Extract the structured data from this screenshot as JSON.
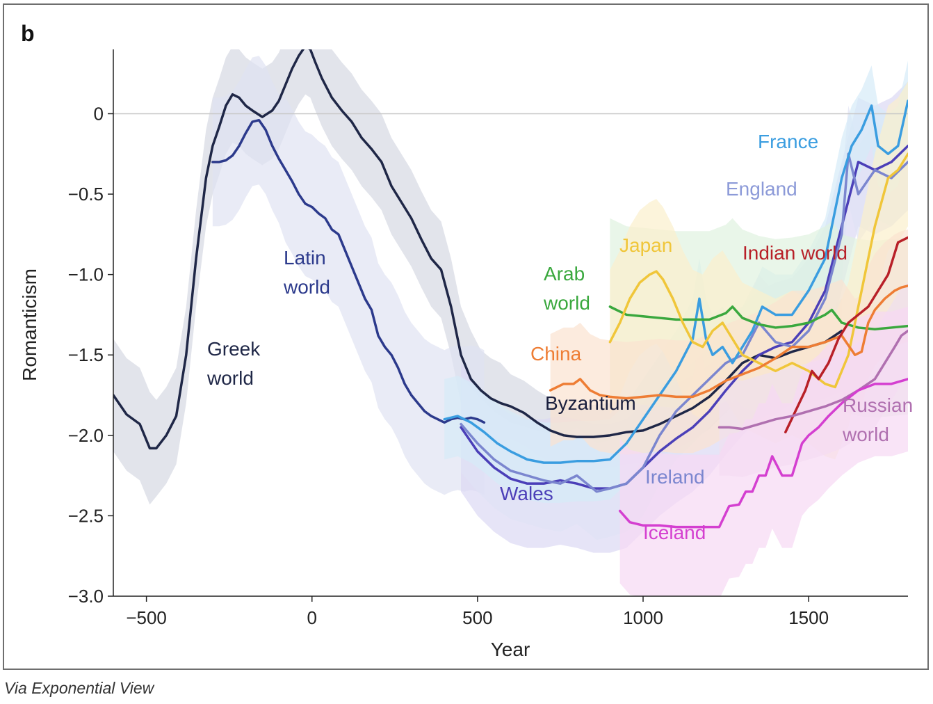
{
  "caption": "Via Exponential View",
  "chart_data": {
    "type": "line",
    "panel_label": "b",
    "title": "",
    "xlabel": "Year",
    "ylabel": "Romanticism",
    "xlim": [
      -600,
      1800
    ],
    "ylim": [
      -3.0,
      0.4
    ],
    "x_ticks": [
      -500,
      0,
      500,
      1000,
      1500
    ],
    "x_tick_labels": [
      "−500",
      "0",
      "500",
      "1000",
      "1500"
    ],
    "y_ticks": [
      0,
      -0.5,
      -1.0,
      -1.5,
      -2.0,
      -2.5,
      -3.0
    ],
    "y_tick_labels": [
      "0",
      "−0.5",
      "−1.0",
      "−1.5",
      "−2.0",
      "−2.5",
      "−3.0"
    ],
    "reference_line_y": 0,
    "series": [
      {
        "name": "Greek world",
        "label_lines": [
          "Greek",
          "world"
        ],
        "color": "#1f2747",
        "band_color": "#d6d8e2",
        "x": [
          -600,
          -560,
          -520,
          -490,
          -470,
          -440,
          -410,
          -380,
          -350,
          -320,
          -300,
          -280,
          -260,
          -240,
          -220,
          -200,
          -180,
          -150,
          -120,
          -100,
          -80,
          -60,
          -40,
          -20,
          -5,
          10,
          30,
          60,
          90,
          120,
          150,
          180,
          210,
          240,
          270,
          300,
          330,
          360,
          390,
          420,
          450,
          480,
          510,
          540,
          570,
          600,
          640,
          680,
          720,
          760,
          800,
          850,
          900,
          950,
          1000,
          1050,
          1100,
          1150,
          1200,
          1250,
          1300,
          1350,
          1400,
          1450,
          1500,
          1550,
          1600
        ],
        "y": [
          -1.75,
          -1.87,
          -1.93,
          -2.08,
          -2.08,
          -2.0,
          -1.88,
          -1.5,
          -0.9,
          -0.4,
          -0.2,
          -0.08,
          0.05,
          0.12,
          0.1,
          0.05,
          0.02,
          -0.02,
          0.02,
          0.08,
          0.18,
          0.28,
          0.36,
          0.42,
          0.4,
          0.32,
          0.22,
          0.1,
          0.02,
          -0.05,
          -0.15,
          -0.22,
          -0.3,
          -0.45,
          -0.55,
          -0.65,
          -0.78,
          -0.9,
          -0.97,
          -1.2,
          -1.5,
          -1.65,
          -1.72,
          -1.77,
          -1.8,
          -1.82,
          -1.86,
          -1.92,
          -1.97,
          -2.0,
          -2.01,
          -2.01,
          -2.0,
          -1.98,
          -1.97,
          -1.93,
          -1.88,
          -1.83,
          -1.76,
          -1.66,
          -1.55,
          -1.5,
          -1.52,
          -1.48,
          -1.45,
          -1.42,
          -1.35
        ],
        "band": [
          0.35,
          0.35,
          0.35,
          0.35,
          0.3,
          0.3,
          0.3,
          0.3,
          0.3,
          0.3,
          0.3,
          0.3,
          0.3,
          0.3,
          0.3,
          0.3,
          0.3,
          0.3,
          0.3,
          0.3,
          0.3,
          0.3,
          0.3,
          0.3,
          0.3,
          0.3,
          0.3,
          0.3,
          0.3,
          0.3,
          0.3,
          0.3,
          0.3,
          0.3,
          0.3,
          0.3,
          0.3,
          0.3,
          0.3,
          0.3,
          0.3,
          0.3,
          0.25,
          0.25,
          0.25,
          0.2,
          0.2,
          0.2,
          0.2,
          0.2,
          0.2,
          0.2,
          0.2,
          0.2,
          0.2,
          0.2,
          0.2,
          0.2,
          0.2,
          0.2,
          0.2,
          0.2,
          0.2,
          0.2,
          0.2,
          0.2,
          0.2
        ]
      },
      {
        "name": "Latin world",
        "label_lines": [
          "Latin",
          "world"
        ],
        "color": "#2c3a8c",
        "band_color": "#dfe3f2",
        "x": [
          -300,
          -280,
          -260,
          -240,
          -220,
          -200,
          -180,
          -160,
          -140,
          -120,
          -100,
          -80,
          -60,
          -40,
          -20,
          0,
          20,
          40,
          60,
          80,
          100,
          120,
          140,
          160,
          180,
          200,
          220,
          240,
          260,
          280,
          300,
          320,
          340,
          360,
          380,
          400,
          420,
          440,
          460,
          480,
          500,
          520
        ],
        "y": [
          -0.3,
          -0.3,
          -0.29,
          -0.26,
          -0.2,
          -0.12,
          -0.05,
          -0.04,
          -0.1,
          -0.2,
          -0.28,
          -0.35,
          -0.42,
          -0.5,
          -0.56,
          -0.58,
          -0.62,
          -0.65,
          -0.72,
          -0.75,
          -0.85,
          -0.95,
          -1.05,
          -1.15,
          -1.22,
          -1.38,
          -1.45,
          -1.5,
          -1.58,
          -1.68,
          -1.75,
          -1.8,
          -1.85,
          -1.88,
          -1.9,
          -1.92,
          -1.9,
          -1.89,
          -1.9,
          -1.89,
          -1.9,
          -1.92
        ],
        "band": [
          0.4,
          0.4,
          0.4,
          0.4,
          0.4,
          0.4,
          0.4,
          0.4,
          0.4,
          0.4,
          0.4,
          0.45,
          0.45,
          0.45,
          0.45,
          0.45,
          0.45,
          0.45,
          0.45,
          0.45,
          0.45,
          0.45,
          0.45,
          0.45,
          0.45,
          0.45,
          0.45,
          0.45,
          0.45,
          0.45,
          0.45,
          0.45,
          0.45,
          0.45,
          0.45,
          0.45,
          0.45,
          0.45,
          0.45,
          0.45,
          0.45,
          0.45
        ]
      },
      {
        "name": "Byzantium",
        "label_lines": [
          "Byzantium"
        ],
        "color": "#1a1f3d",
        "band_color": "#e4e4ea",
        "show_band": false,
        "x": [],
        "y": [],
        "band": []
      },
      {
        "name": "Wales",
        "label_lines": [
          "Wales"
        ],
        "color": "#4b3fb8",
        "band_color": "#dcd8f4",
        "x": [
          450,
          500,
          550,
          600,
          650,
          700,
          750,
          800,
          850,
          900,
          950,
          1000,
          1050,
          1100,
          1150,
          1200,
          1250,
          1300,
          1350,
          1400,
          1450,
          1500,
          1550,
          1600,
          1650,
          1700,
          1750,
          1800
        ],
        "y": [
          -1.95,
          -2.1,
          -2.2,
          -2.27,
          -2.3,
          -2.3,
          -2.28,
          -2.3,
          -2.33,
          -2.33,
          -2.3,
          -2.2,
          -2.1,
          -2.02,
          -1.95,
          -1.85,
          -1.72,
          -1.6,
          -1.5,
          -1.45,
          -1.42,
          -1.3,
          -1.1,
          -0.7,
          -0.3,
          -0.35,
          -0.3,
          -0.2
        ],
        "band": [
          0.4,
          0.4,
          0.4,
          0.4,
          0.4,
          0.4,
          0.4,
          0.4,
          0.4,
          0.4,
          0.4,
          0.4,
          0.4,
          0.4,
          0.4,
          0.4,
          0.4,
          0.4,
          0.4,
          0.4,
          0.4,
          0.4,
          0.4,
          0.4,
          0.4,
          0.4,
          0.4,
          0.4
        ]
      },
      {
        "name": "Ireland",
        "label_lines": [
          "Ireland"
        ],
        "color": "#7b86cf",
        "band_color": "#e0e3f5",
        "x": [
          450,
          500,
          550,
          600,
          650,
          700,
          750,
          800,
          830,
          860,
          900,
          950,
          1000,
          1050,
          1100,
          1150,
          1200,
          1250,
          1300,
          1350,
          1400,
          1450,
          1500,
          1550,
          1600,
          1620,
          1650,
          1700,
          1750,
          1800
        ],
        "y": [
          -1.93,
          -2.05,
          -2.15,
          -2.22,
          -2.25,
          -2.28,
          -2.3,
          -2.25,
          -2.3,
          -2.35,
          -2.33,
          -2.3,
          -2.2,
          -2.0,
          -1.85,
          -1.75,
          -1.65,
          -1.55,
          -1.5,
          -1.3,
          -1.42,
          -1.45,
          -1.35,
          -1.15,
          -0.75,
          -0.25,
          -0.5,
          -0.35,
          -0.4,
          -0.3
        ],
        "band": [
          0.3,
          0.3,
          0.3,
          0.3,
          0.3,
          0.3,
          0.3,
          0.3,
          0.3,
          0.3,
          0.3,
          0.3,
          0.3,
          0.3,
          0.3,
          0.3,
          0.3,
          0.3,
          0.3,
          0.3,
          0.3,
          0.3,
          0.3,
          0.3,
          0.3,
          0.3,
          0.3,
          0.3,
          0.3,
          0.3
        ]
      },
      {
        "name": "France",
        "label_lines": [
          "France"
        ],
        "color": "#3a9de0",
        "band_color": "#d6ebf8",
        "x": [
          400,
          440,
          480,
          520,
          560,
          600,
          650,
          700,
          750,
          800,
          850,
          900,
          950,
          1000,
          1050,
          1100,
          1150,
          1170,
          1190,
          1210,
          1240,
          1270,
          1300,
          1330,
          1360,
          1400,
          1450,
          1500,
          1550,
          1600,
          1630,
          1660,
          1690,
          1710,
          1740,
          1770,
          1800
        ],
        "y": [
          -1.9,
          -1.88,
          -1.92,
          -1.98,
          -2.05,
          -2.1,
          -2.15,
          -2.17,
          -2.17,
          -2.16,
          -2.16,
          -2.15,
          -2.05,
          -1.9,
          -1.75,
          -1.6,
          -1.4,
          -1.15,
          -1.4,
          -1.5,
          -1.45,
          -1.55,
          -1.45,
          -1.35,
          -1.2,
          -1.25,
          -1.25,
          -1.1,
          -0.9,
          -0.4,
          -0.2,
          -0.1,
          0.05,
          -0.2,
          -0.25,
          -0.2,
          0.08
        ],
        "band": [
          0.25,
          0.25,
          0.25,
          0.25,
          0.25,
          0.25,
          0.25,
          0.25,
          0.25,
          0.25,
          0.25,
          0.25,
          0.25,
          0.25,
          0.25,
          0.25,
          0.25,
          0.25,
          0.25,
          0.25,
          0.25,
          0.25,
          0.25,
          0.25,
          0.25,
          0.25,
          0.25,
          0.25,
          0.25,
          0.25,
          0.25,
          0.25,
          0.25,
          0.25,
          0.25,
          0.25,
          0.25
        ]
      },
      {
        "name": "England",
        "label_lines": [
          "England"
        ],
        "color": "#8c9ad8",
        "band_color": "#e4e8f6",
        "show_band": false,
        "x": [],
        "y": [],
        "band": []
      },
      {
        "name": "Arab world",
        "label_lines": [
          "Arab",
          "world"
        ],
        "color": "#3aa83e",
        "band_color": "#dff2df",
        "x": [
          900,
          950,
          1000,
          1050,
          1100,
          1150,
          1200,
          1250,
          1270,
          1300,
          1350,
          1400,
          1450,
          1500,
          1550,
          1570,
          1600,
          1650,
          1700,
          1750,
          1800
        ],
        "y": [
          -1.2,
          -1.25,
          -1.26,
          -1.27,
          -1.28,
          -1.28,
          -1.28,
          -1.24,
          -1.2,
          -1.27,
          -1.31,
          -1.33,
          -1.32,
          -1.3,
          -1.25,
          -1.22,
          -1.3,
          -1.33,
          -1.34,
          -1.33,
          -1.32
        ],
        "band": [
          0.55,
          0.55,
          0.55,
          0.55,
          0.55,
          0.55,
          0.55,
          0.55,
          0.55,
          0.55,
          0.55,
          0.55,
          0.55,
          0.55,
          0.55,
          0.55,
          0.55,
          0.55,
          0.55,
          0.55,
          0.55
        ]
      },
      {
        "name": "Japan",
        "label_lines": [
          "Japan"
        ],
        "color": "#f0c63a",
        "band_color": "#fbf0cc",
        "x": [
          900,
          930,
          960,
          990,
          1020,
          1040,
          1060,
          1090,
          1120,
          1150,
          1180,
          1210,
          1240,
          1270,
          1300,
          1350,
          1400,
          1450,
          1500,
          1550,
          1580,
          1620,
          1650,
          1700,
          1740,
          1770,
          1800
        ],
        "y": [
          -1.42,
          -1.3,
          -1.15,
          -1.05,
          -1.0,
          -0.98,
          -1.03,
          -1.15,
          -1.3,
          -1.42,
          -1.45,
          -1.35,
          -1.3,
          -1.4,
          -1.5,
          -1.55,
          -1.6,
          -1.55,
          -1.6,
          -1.68,
          -1.7,
          -1.5,
          -1.2,
          -0.7,
          -0.4,
          -0.35,
          -0.25
        ],
        "band": [
          0.45,
          0.45,
          0.45,
          0.45,
          0.45,
          0.45,
          0.45,
          0.45,
          0.45,
          0.45,
          0.45,
          0.45,
          0.45,
          0.45,
          0.45,
          0.45,
          0.45,
          0.45,
          0.45,
          0.45,
          0.45,
          0.45,
          0.45,
          0.45,
          0.45,
          0.45,
          0.45
        ]
      },
      {
        "name": "China",
        "label_lines": [
          "China"
        ],
        "color": "#ee7d34",
        "band_color": "#fbe2d0",
        "x": [
          720,
          760,
          790,
          810,
          840,
          870,
          900,
          950,
          1000,
          1050,
          1100,
          1150,
          1200,
          1250,
          1300,
          1350,
          1400,
          1450,
          1500,
          1550,
          1600,
          1640,
          1660,
          1680,
          1700,
          1730,
          1760,
          1780,
          1800
        ],
        "y": [
          -1.72,
          -1.68,
          -1.68,
          -1.65,
          -1.72,
          -1.75,
          -1.76,
          -1.77,
          -1.76,
          -1.75,
          -1.76,
          -1.76,
          -1.72,
          -1.66,
          -1.62,
          -1.58,
          -1.52,
          -1.45,
          -1.45,
          -1.42,
          -1.38,
          -1.5,
          -1.48,
          -1.3,
          -1.22,
          -1.15,
          -1.1,
          -1.08,
          -1.07
        ],
        "band": [
          0.35,
          0.35,
          0.35,
          0.35,
          0.35,
          0.35,
          0.35,
          0.35,
          0.35,
          0.35,
          0.35,
          0.35,
          0.35,
          0.35,
          0.35,
          0.35,
          0.35,
          0.35,
          0.35,
          0.35,
          0.35,
          0.35,
          0.35,
          0.35,
          0.35,
          0.35,
          0.35,
          0.35,
          0.35
        ]
      },
      {
        "name": "Indian world",
        "label_lines": [
          "Indian world"
        ],
        "color": "#b82028",
        "band_color": "#f2d4d4",
        "show_band": false,
        "x": [
          1430,
          1460,
          1490,
          1510,
          1530,
          1560,
          1590,
          1620,
          1650,
          1680,
          1710,
          1740,
          1770,
          1800
        ],
        "y": [
          -1.98,
          -1.85,
          -1.72,
          -1.6,
          -1.65,
          -1.55,
          -1.4,
          -1.3,
          -1.25,
          -1.2,
          -1.1,
          -1.0,
          -0.8,
          -0.77
        ],
        "band": []
      },
      {
        "name": "Russian world",
        "label_lines": [
          "Russian",
          "world"
        ],
        "color": "#b070b0",
        "band_color": "#f0dff0",
        "x": [
          1230,
          1260,
          1300,
          1350,
          1400,
          1450,
          1500,
          1550,
          1600,
          1650,
          1700,
          1730,
          1760,
          1780,
          1800
        ],
        "y": [
          -1.95,
          -1.95,
          -1.96,
          -1.93,
          -1.9,
          -1.88,
          -1.85,
          -1.82,
          -1.78,
          -1.72,
          -1.65,
          -1.55,
          -1.45,
          -1.38,
          -1.35
        ],
        "band": [
          0.3,
          0.3,
          0.3,
          0.3,
          0.3,
          0.3,
          0.3,
          0.3,
          0.3,
          0.3,
          0.3,
          0.3,
          0.3,
          0.3,
          0.3
        ]
      },
      {
        "name": "Iceland",
        "label_lines": [
          "Iceland"
        ],
        "color": "#d43fd0",
        "band_color": "#f6d8f4",
        "x": [
          930,
          960,
          1000,
          1050,
          1100,
          1150,
          1200,
          1230,
          1260,
          1290,
          1310,
          1330,
          1350,
          1370,
          1390,
          1420,
          1450,
          1480,
          1500,
          1530,
          1560,
          1600,
          1650,
          1700,
          1750,
          1800
        ],
        "y": [
          -2.47,
          -2.54,
          -2.56,
          -2.56,
          -2.57,
          -2.57,
          -2.57,
          -2.57,
          -2.44,
          -2.43,
          -2.35,
          -2.35,
          -2.25,
          -2.25,
          -2.13,
          -2.25,
          -2.25,
          -2.05,
          -2.0,
          -1.95,
          -1.88,
          -1.8,
          -1.72,
          -1.68,
          -1.68,
          -1.65
        ],
        "band": [
          0.45,
          0.45,
          0.45,
          0.45,
          0.45,
          0.45,
          0.45,
          0.45,
          0.45,
          0.45,
          0.45,
          0.45,
          0.45,
          0.45,
          0.45,
          0.45,
          0.45,
          0.45,
          0.45,
          0.45,
          0.45,
          0.45,
          0.45,
          0.45,
          0.45,
          0.45
        ]
      }
    ]
  }
}
